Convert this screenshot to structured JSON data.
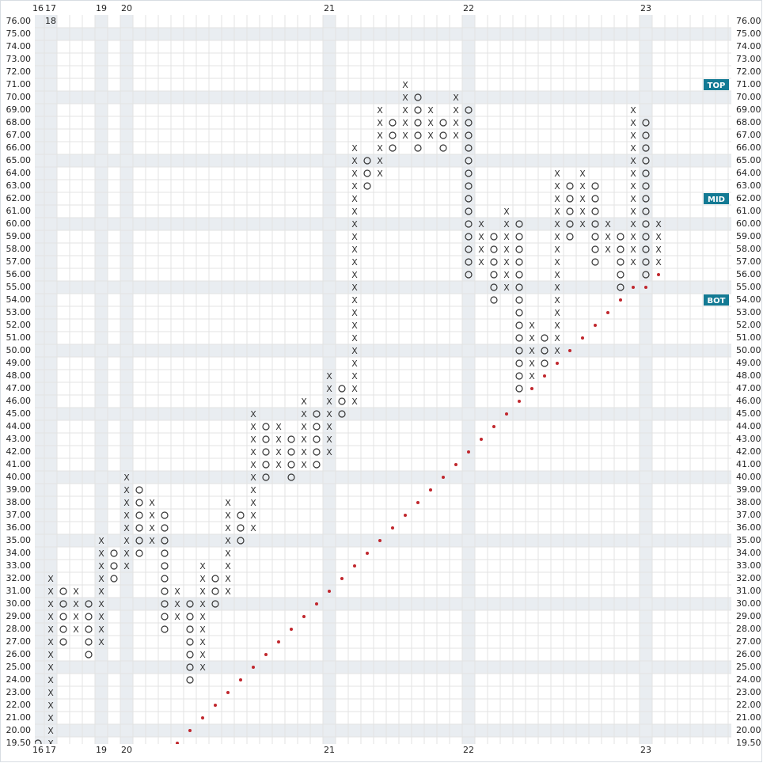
{
  "chart_data": {
    "type": "point_and_figure",
    "yticks": [
      {
        "value": 19.5,
        "label": "19.50"
      },
      {
        "value": 20,
        "label": "20.00"
      },
      {
        "value": 21,
        "label": "21.00"
      },
      {
        "value": 22,
        "label": "22.00"
      },
      {
        "value": 23,
        "label": "23.00"
      },
      {
        "value": 24,
        "label": "24.00"
      },
      {
        "value": 25,
        "label": "25.00"
      },
      {
        "value": 26,
        "label": "26.00"
      },
      {
        "value": 27,
        "label": "27.00"
      },
      {
        "value": 28,
        "label": "28.00"
      },
      {
        "value": 29,
        "label": "29.00"
      },
      {
        "value": 30,
        "label": "30.00"
      },
      {
        "value": 31,
        "label": "31.00"
      },
      {
        "value": 32,
        "label": "32.00"
      },
      {
        "value": 33,
        "label": "33.00"
      },
      {
        "value": 34,
        "label": "34.00"
      },
      {
        "value": 35,
        "label": "35.00"
      },
      {
        "value": 36,
        "label": "36.00"
      },
      {
        "value": 37,
        "label": "37.00"
      },
      {
        "value": 38,
        "label": "38.00"
      },
      {
        "value": 39,
        "label": "39.00"
      },
      {
        "value": 40,
        "label": "40.00"
      },
      {
        "value": 41,
        "label": "41.00"
      },
      {
        "value": 42,
        "label": "42.00"
      },
      {
        "value": 43,
        "label": "43.00"
      },
      {
        "value": 44,
        "label": "44.00"
      },
      {
        "value": 45,
        "label": "45.00"
      },
      {
        "value": 46,
        "label": "46.00"
      },
      {
        "value": 47,
        "label": "47.00"
      },
      {
        "value": 48,
        "label": "48.00"
      },
      {
        "value": 49,
        "label": "49.00"
      },
      {
        "value": 50,
        "label": "50.00"
      },
      {
        "value": 51,
        "label": "51.00"
      },
      {
        "value": 52,
        "label": "52.00"
      },
      {
        "value": 53,
        "label": "53.00"
      },
      {
        "value": 54,
        "label": "54.00"
      },
      {
        "value": 55,
        "label": "55.00"
      },
      {
        "value": 56,
        "label": "56.00"
      },
      {
        "value": 57,
        "label": "57.00"
      },
      {
        "value": 58,
        "label": "58.00"
      },
      {
        "value": 59,
        "label": "59.00"
      },
      {
        "value": 60,
        "label": "60.00"
      },
      {
        "value": 61,
        "label": "61.00"
      },
      {
        "value": 62,
        "label": "62.00"
      },
      {
        "value": 63,
        "label": "63.00"
      },
      {
        "value": 64,
        "label": "64.00"
      },
      {
        "value": 65,
        "label": "65.00"
      },
      {
        "value": 66,
        "label": "66.00"
      },
      {
        "value": 67,
        "label": "67.00"
      },
      {
        "value": 68,
        "label": "68.00"
      },
      {
        "value": 69,
        "label": "69.00"
      },
      {
        "value": 70,
        "label": "70.00"
      },
      {
        "value": 71,
        "label": "71.00"
      },
      {
        "value": 72,
        "label": "72.00"
      },
      {
        "value": 73,
        "label": "73.00"
      },
      {
        "value": 74,
        "label": "74.00"
      },
      {
        "value": 75,
        "label": "75.00"
      },
      {
        "value": 76,
        "label": "76.00"
      }
    ],
    "columns": [
      {
        "type": "O",
        "from": 19.5,
        "to": 19.5,
        "label": "16"
      },
      {
        "type": "X",
        "from": 19.5,
        "to": 32,
        "label": "17",
        "note": "18"
      },
      {
        "type": "O",
        "from": 27,
        "to": 31
      },
      {
        "type": "X",
        "from": 28,
        "to": 31
      },
      {
        "type": "O",
        "from": 26,
        "to": 30
      },
      {
        "type": "X",
        "from": 27,
        "to": 35,
        "label": "19"
      },
      {
        "type": "O",
        "from": 32,
        "to": 34
      },
      {
        "type": "X",
        "from": 33,
        "to": 40,
        "label": "20"
      },
      {
        "type": "O",
        "from": 34,
        "to": 39
      },
      {
        "type": "X",
        "from": 35,
        "to": 38
      },
      {
        "type": "O",
        "from": 28,
        "to": 37
      },
      {
        "type": "X",
        "from": 29,
        "to": 31
      },
      {
        "type": "O",
        "from": 24,
        "to": 30
      },
      {
        "type": "X",
        "from": 25,
        "to": 33
      },
      {
        "type": "O",
        "from": 30,
        "to": 32
      },
      {
        "type": "X",
        "from": 31,
        "to": 38
      },
      {
        "type": "O",
        "from": 35,
        "to": 37
      },
      {
        "type": "X",
        "from": 36,
        "to": 45
      },
      {
        "type": "O",
        "from": 40,
        "to": 44
      },
      {
        "type": "X",
        "from": 41,
        "to": 44
      },
      {
        "type": "O",
        "from": 40,
        "to": 43
      },
      {
        "type": "X",
        "from": 41,
        "to": 46
      },
      {
        "type": "O",
        "from": 41,
        "to": 45
      },
      {
        "type": "X",
        "from": 42,
        "to": 48,
        "label": "21"
      },
      {
        "type": "O",
        "from": 45,
        "to": 47
      },
      {
        "type": "X",
        "from": 46,
        "to": 66
      },
      {
        "type": "O",
        "from": 63,
        "to": 65
      },
      {
        "type": "X",
        "from": 64,
        "to": 69
      },
      {
        "type": "O",
        "from": 66,
        "to": 68
      },
      {
        "type": "X",
        "from": 67,
        "to": 71
      },
      {
        "type": "O",
        "from": 66,
        "to": 70
      },
      {
        "type": "X",
        "from": 67,
        "to": 69
      },
      {
        "type": "O",
        "from": 66,
        "to": 68
      },
      {
        "type": "X",
        "from": 67,
        "to": 70
      },
      {
        "type": "O",
        "from": 56,
        "to": 69,
        "label": "22"
      },
      {
        "type": "X",
        "from": 57,
        "to": 60
      },
      {
        "type": "O",
        "from": 54,
        "to": 59
      },
      {
        "type": "X",
        "from": 55,
        "to": 61
      },
      {
        "type": "O",
        "from": 47,
        "to": 60
      },
      {
        "type": "X",
        "from": 48,
        "to": 52
      },
      {
        "type": "O",
        "from": 49,
        "to": 51
      },
      {
        "type": "X",
        "from": 50,
        "to": 64
      },
      {
        "type": "O",
        "from": 59,
        "to": 63
      },
      {
        "type": "X",
        "from": 60,
        "to": 64
      },
      {
        "type": "O",
        "from": 57,
        "to": 63
      },
      {
        "type": "X",
        "from": 58,
        "to": 60
      },
      {
        "type": "O",
        "from": 55,
        "to": 59
      },
      {
        "type": "X",
        "from": 57,
        "to": 69
      },
      {
        "type": "O",
        "from": 56,
        "to": 68,
        "label": "23"
      },
      {
        "type": "X",
        "from": 57,
        "to": 60
      }
    ],
    "trendline": {
      "color": "#c0272d",
      "values": [
        null,
        null,
        null,
        null,
        null,
        null,
        null,
        null,
        null,
        null,
        null,
        19.5,
        20,
        21,
        22,
        23,
        24,
        25,
        26,
        27,
        28,
        29,
        30,
        31,
        32,
        33,
        34,
        35,
        36,
        37,
        38,
        39,
        40,
        41,
        42,
        43,
        44,
        45,
        46,
        47,
        48,
        49,
        50,
        51,
        52,
        53,
        54,
        55,
        55,
        56
      ]
    },
    "markers": [
      {
        "label": "TOP",
        "value": 71
      },
      {
        "label": "MID",
        "value": 62
      },
      {
        "label": "BOT",
        "value": 54
      }
    ],
    "marker_color": "#137a94",
    "box_color": "#333333",
    "grid": true
  }
}
